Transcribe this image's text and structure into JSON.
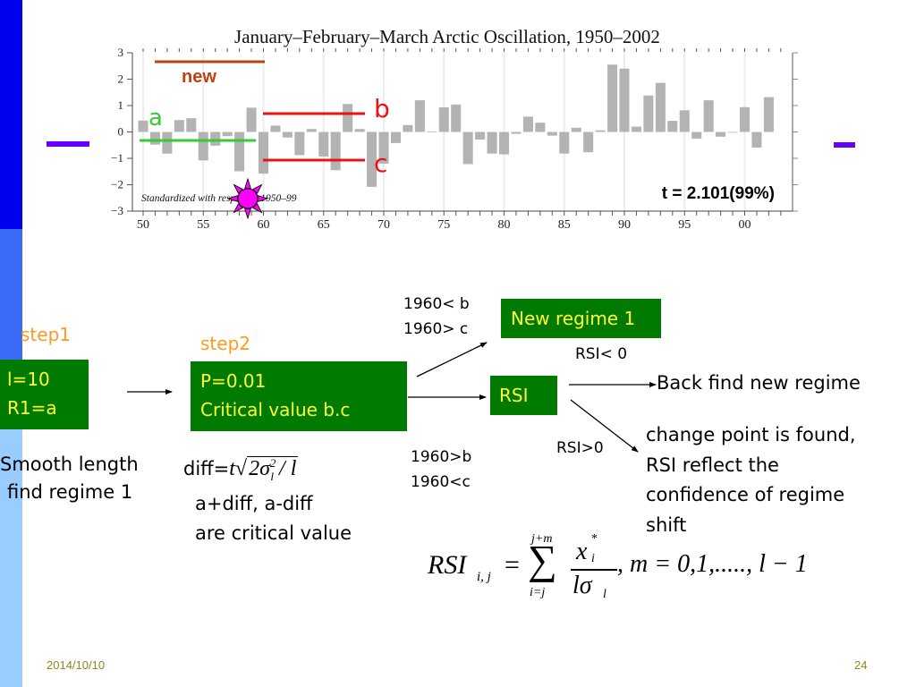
{
  "slide": {
    "page_number": "24",
    "date": "2014/10/10",
    "colors": {
      "sidebar_top": "#0000f0",
      "sidebar_mid": "#3a6cf8",
      "sidebar_bottom": "#99ccff",
      "accent_bar": "#6600ff",
      "box_fill": "#007a00",
      "box_text": "#ffff33",
      "step_label": "#ff9922",
      "footer_text": "#8a8a1a"
    }
  },
  "chart_data": {
    "type": "bar",
    "title": "January–February–March Arctic Oscillation, 1950–2002",
    "note": "Standardized with respect to 1950–99",
    "xlabel": "",
    "ylabel": "",
    "ylim": [
      -3,
      3
    ],
    "yticks": [
      "3",
      "2",
      "1",
      "0",
      "−1",
      "−2",
      "−3"
    ],
    "xticks": [
      "50",
      "55",
      "60",
      "65",
      "70",
      "75",
      "80",
      "85",
      "90",
      "95",
      "00"
    ],
    "categories": [
      1950,
      1951,
      1952,
      1953,
      1954,
      1955,
      1956,
      1957,
      1958,
      1959,
      1960,
      1961,
      1962,
      1963,
      1964,
      1965,
      1966,
      1967,
      1968,
      1969,
      1970,
      1971,
      1972,
      1973,
      1974,
      1975,
      1976,
      1977,
      1978,
      1979,
      1980,
      1981,
      1982,
      1983,
      1984,
      1985,
      1986,
      1987,
      1988,
      1989,
      1990,
      1991,
      1992,
      1993,
      1994,
      1995,
      1996,
      1997,
      1998,
      1999,
      2000,
      2001,
      2002
    ],
    "values": [
      0.43,
      -0.48,
      -0.82,
      0.45,
      0.52,
      -1.08,
      -0.52,
      -0.16,
      -1.49,
      0.92,
      -1.58,
      0.24,
      -0.21,
      -0.88,
      0.11,
      -0.93,
      -1.45,
      1.06,
      0.11,
      -2.08,
      -1.2,
      -0.42,
      0.26,
      1.2,
      0.02,
      0.93,
      1.04,
      -1.22,
      -0.29,
      -0.82,
      -0.85,
      -0.07,
      0.58,
      0.35,
      -0.14,
      -0.82,
      0.16,
      -0.77,
      0.06,
      2.55,
      2.4,
      0.2,
      1.38,
      1.86,
      0.42,
      0.82,
      -0.25,
      1.2,
      -0.18,
      -0.01,
      0.94,
      -0.59,
      1.32
    ],
    "bar_color": "#b3b3b3",
    "grid": "vertical every 5 years",
    "annotations": [
      {
        "label": "new",
        "type": "line",
        "from": 1951,
        "to": 1960,
        "y": 2.65,
        "color": "#b5460f"
      },
      {
        "label": "a",
        "type": "line",
        "from": 1950,
        "to": 1959.5,
        "y": -0.35,
        "color": "#33cc33"
      },
      {
        "label": "b",
        "type": "line",
        "from": 1960,
        "to": 1968.5,
        "y": 0.7,
        "color": "#ee1111"
      },
      {
        "label": "c",
        "type": "line",
        "from": 1960,
        "to": 1968.5,
        "y": -1.08,
        "color": "#ee1111"
      },
      {
        "label": "t = 2.101(99%)",
        "type": "text"
      },
      {
        "label": "sun-marker",
        "type": "marker",
        "x": 1958.8,
        "y": -2.55,
        "color": "#ff00ff"
      }
    ]
  },
  "chart_labels": {
    "new": "new",
    "a": "a",
    "b": "b",
    "c": "c",
    "t_value": "t = 2.101(99%)"
  },
  "flow": {
    "step1": {
      "label": "step1",
      "box_line1": "l=10",
      "box_line2": "R1=a",
      "caption_line1": "Smooth length",
      "caption_line2": "find regime 1"
    },
    "step2": {
      "label": "step2",
      "box_line1": "P=0.01",
      "box_line2": "Critical value b.c",
      "formula_prefix": "diff=",
      "formula": "t√(2σ²ₗ / l)",
      "caption_line1": "a+diff, a-diff",
      "caption_line2": "are critical value"
    },
    "upper_condition": {
      "line1": "1960< b",
      "line2": "1960> c"
    },
    "lower_condition": {
      "line1": "1960>b",
      "line2": "1960<c"
    },
    "new_regime_box": "New regime 1",
    "rsi_box": "RSI",
    "rsi_neg_label": "RSI< 0",
    "rsi_pos_label": "RSI>0",
    "back_find": "Back find new regime",
    "change_point": {
      "line1": "change point is found,",
      "line2": "RSI reflect the",
      "line3": "confidence of regime",
      "line4": "shift"
    },
    "rsi_formula": {
      "lhs": "RSI",
      "lhs_sub": "i, j",
      "sum_upper": "j+m",
      "sum_lower": "i=j",
      "numerator": "x",
      "num_sup": "*",
      "num_sub": "i",
      "denominator": "lσ",
      "den_sub": "l",
      "tail": ", m = 0,1,....., l − 1"
    }
  }
}
